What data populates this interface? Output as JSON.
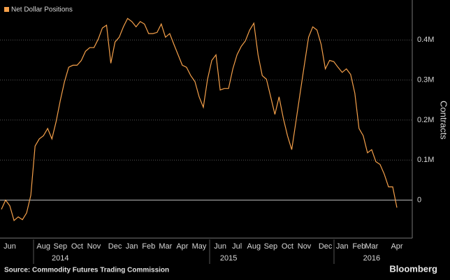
{
  "chart_data": {
    "type": "line",
    "legend_label": "Net Dollar Positions",
    "y_axis_title": "Contracts",
    "source": "Source: Commodity Futures Trading Commission",
    "brand": "Bloomberg",
    "categories": [
      null,
      null,
      "Jun",
      null,
      null,
      null,
      null,
      null,
      null,
      null,
      "Aug",
      null,
      null,
      null,
      "Sep",
      null,
      null,
      null,
      "Oct",
      null,
      null,
      null,
      "Nov",
      null,
      null,
      null,
      null,
      "Dec",
      null,
      null,
      null,
      "Jan",
      null,
      null,
      null,
      "Feb",
      null,
      null,
      null,
      "Mar",
      null,
      null,
      null,
      "Apr",
      null,
      null,
      null,
      "May",
      null,
      null,
      null,
      null,
      "Jun",
      null,
      null,
      null,
      "Jul",
      null,
      null,
      null,
      "Aug",
      null,
      null,
      null,
      "Sep",
      null,
      null,
      null,
      "Oct",
      null,
      null,
      null,
      "Nov",
      null,
      null,
      null,
      null,
      "Dec",
      null,
      null,
      null,
      "Jan",
      null,
      null,
      null,
      "Feb",
      null,
      null,
      "Mar",
      null,
      null,
      null,
      null,
      null,
      "Apr"
    ],
    "years": [
      null,
      null,
      null,
      null,
      null,
      null,
      null,
      null,
      null,
      null,
      null,
      null,
      null,
      null,
      "2014",
      null,
      null,
      null,
      null,
      null,
      null,
      null,
      null,
      null,
      null,
      null,
      null,
      null,
      null,
      null,
      null,
      null,
      null,
      null,
      null,
      null,
      null,
      null,
      null,
      null,
      null,
      null,
      null,
      null,
      null,
      null,
      null,
      null,
      null,
      null,
      null,
      null,
      null,
      null,
      "2015",
      null,
      null,
      null,
      null,
      null,
      null,
      null,
      null,
      null,
      null,
      null,
      null,
      null,
      null,
      null,
      null,
      null,
      null,
      null,
      null,
      null,
      null,
      null,
      null,
      null,
      null,
      null,
      null,
      null,
      null,
      null,
      null,
      null,
      "2016",
      null,
      null,
      null,
      null,
      null,
      null
    ],
    "series": [
      {
        "name": "Net Dollar Positions",
        "color": "#f5a04a",
        "values": [
          -23000,
          0,
          -14000,
          -51000,
          -42000,
          -49000,
          -32000,
          12000,
          135000,
          153000,
          161000,
          179000,
          153000,
          196000,
          249000,
          296000,
          332000,
          337000,
          337000,
          349000,
          372000,
          381000,
          381000,
          402000,
          430000,
          437000,
          342000,
          395000,
          407000,
          433000,
          454000,
          446000,
          433000,
          446000,
          440000,
          416000,
          416000,
          419000,
          440000,
          407000,
          416000,
          389000,
          363000,
          337000,
          332000,
          311000,
          296000,
          258000,
          232000,
          302000,
          349000,
          363000,
          275000,
          279000,
          279000,
          328000,
          363000,
          384000,
          398000,
          425000,
          442000,
          363000,
          311000,
          302000,
          258000,
          214000,
          258000,
          205000,
          161000,
          126000,
          196000,
          267000,
          337000,
          407000,
          433000,
          425000,
          389000,
          328000,
          349000,
          346000,
          332000,
          319000,
          328000,
          314000,
          267000,
          179000,
          161000,
          118000,
          126000,
          96000,
          89000,
          65000,
          33000,
          33000,
          -19000
        ]
      }
    ],
    "ylim": [
      -95000,
      500000
    ],
    "yticks": [
      0,
      {
        "value": 100000,
        "label": "0.1M"
      },
      {
        "value": 200000,
        "label": "0.2M"
      },
      {
        "value": 300000,
        "label": "0.3M"
      },
      {
        "value": 400000,
        "label": "0.4M"
      }
    ],
    "grid": true
  }
}
